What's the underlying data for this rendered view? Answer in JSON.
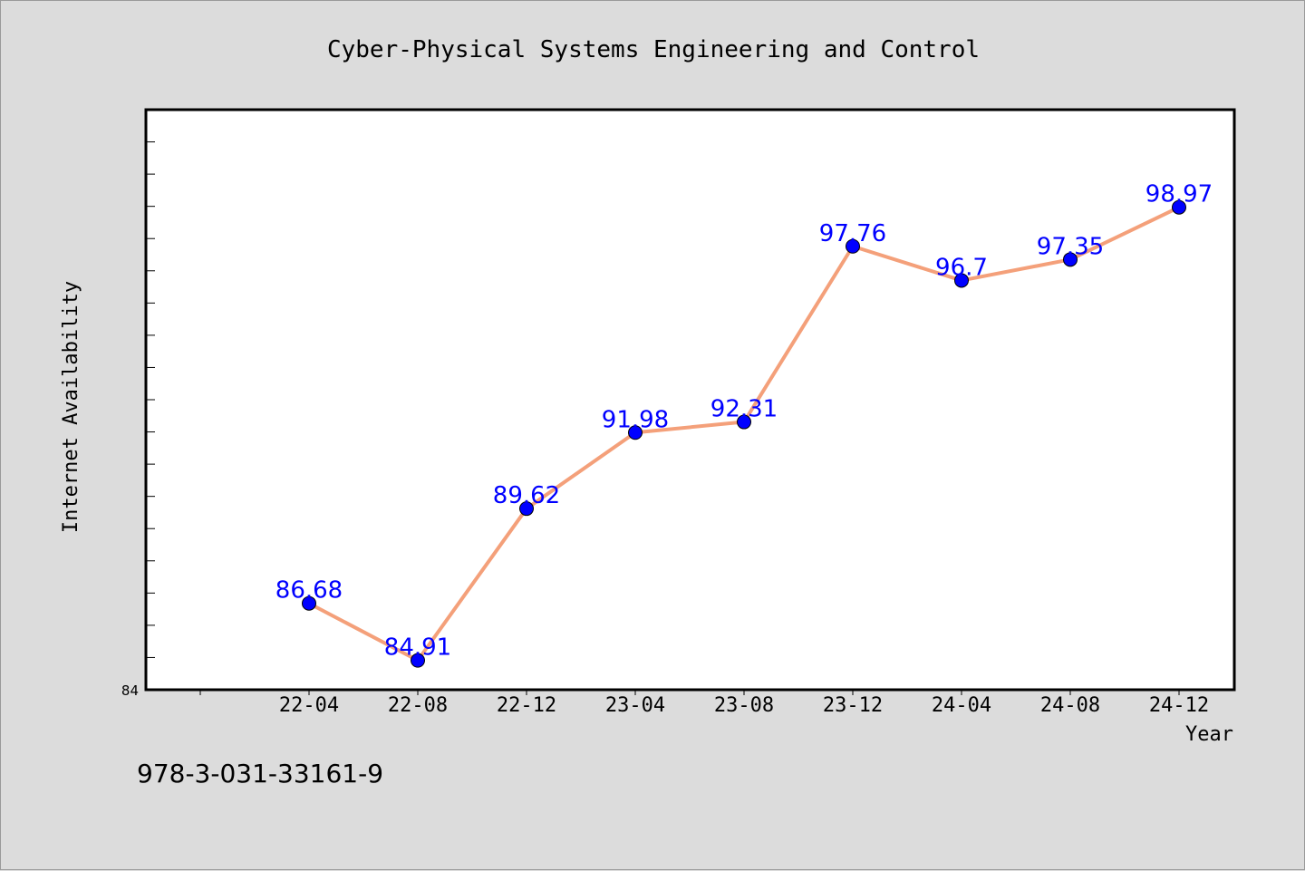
{
  "chart_data": {
    "type": "line",
    "title": "Cyber-Physical Systems Engineering and Control",
    "xlabel": "Year",
    "ylabel": "Internet Availability",
    "categories": [
      "22-04",
      "22-08",
      "22-12",
      "23-04",
      "23-08",
      "23-12",
      "24-04",
      "24-08",
      "24-12"
    ],
    "series": [
      {
        "values": [
          86.68,
          84.91,
          89.62,
          91.98,
          92.31,
          97.76,
          96.7,
          97.35,
          98.97
        ],
        "point_labels": [
          "86.68",
          "84.91",
          "89.62",
          "91.98",
          "92.31",
          "97.76",
          "96.7",
          "97.35",
          "98.97"
        ]
      }
    ],
    "ylim": [
      84,
      102
    ],
    "y_tick_labels": [
      "84"
    ],
    "grid": false,
    "legend": "none",
    "colors": {
      "line": "#f4a07a",
      "marker": "#0000ff",
      "data_label": "#0000ff",
      "background": "#dcdcdc",
      "plot_background": "#ffffff"
    }
  },
  "footer": {
    "isbn": "978-3-031-33161-9"
  }
}
